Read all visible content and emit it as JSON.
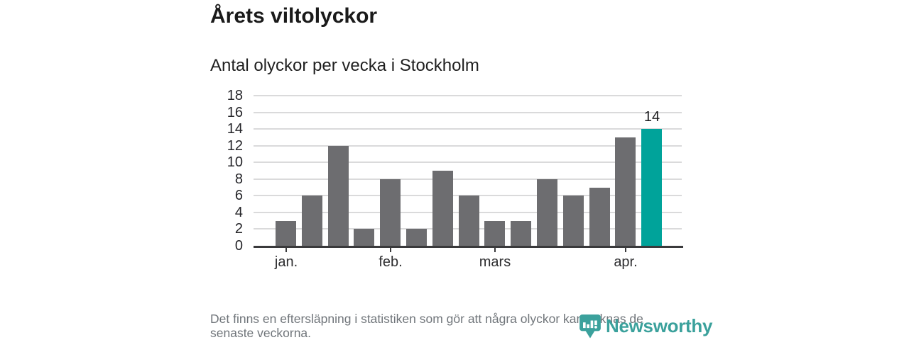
{
  "header": {
    "title": "Årets viltolyckor",
    "subtitle": "Antal olyckor per vecka i Stockholm"
  },
  "chart_data": {
    "type": "bar",
    "title": "Årets viltolyckor",
    "subtitle": "Antal olyckor per vecka i Stockholm",
    "values": [
      3,
      6,
      12,
      2,
      8,
      2,
      9,
      6,
      3,
      3,
      8,
      6,
      7,
      13,
      14
    ],
    "ylim": [
      0,
      18
    ],
    "yticks": [
      0,
      2,
      4,
      6,
      8,
      10,
      12,
      14,
      16,
      18
    ],
    "x_tick_labels": [
      {
        "label": "jan.",
        "bar_index": 0
      },
      {
        "label": "feb.",
        "bar_index": 4
      },
      {
        "label": "mars",
        "bar_index": 8
      },
      {
        "label": "apr.",
        "bar_index": 13
      }
    ],
    "highlight": {
      "bar_index": 14,
      "value_label": "14"
    },
    "grid": true,
    "legend": "none",
    "colors": {
      "bar": "#6d6d70",
      "highlight": "#00a39a",
      "axis": "#3a3a3c",
      "gridline": "#dadadb",
      "tick_text": "#26262a"
    }
  },
  "footer": {
    "note": "Det finns en eftersläpning i statistiken som gör att några olyckor kan saknas de senaste veckorna."
  },
  "branding": {
    "logo_text": "Newsworthy",
    "logo_color": "#3ba19c"
  }
}
